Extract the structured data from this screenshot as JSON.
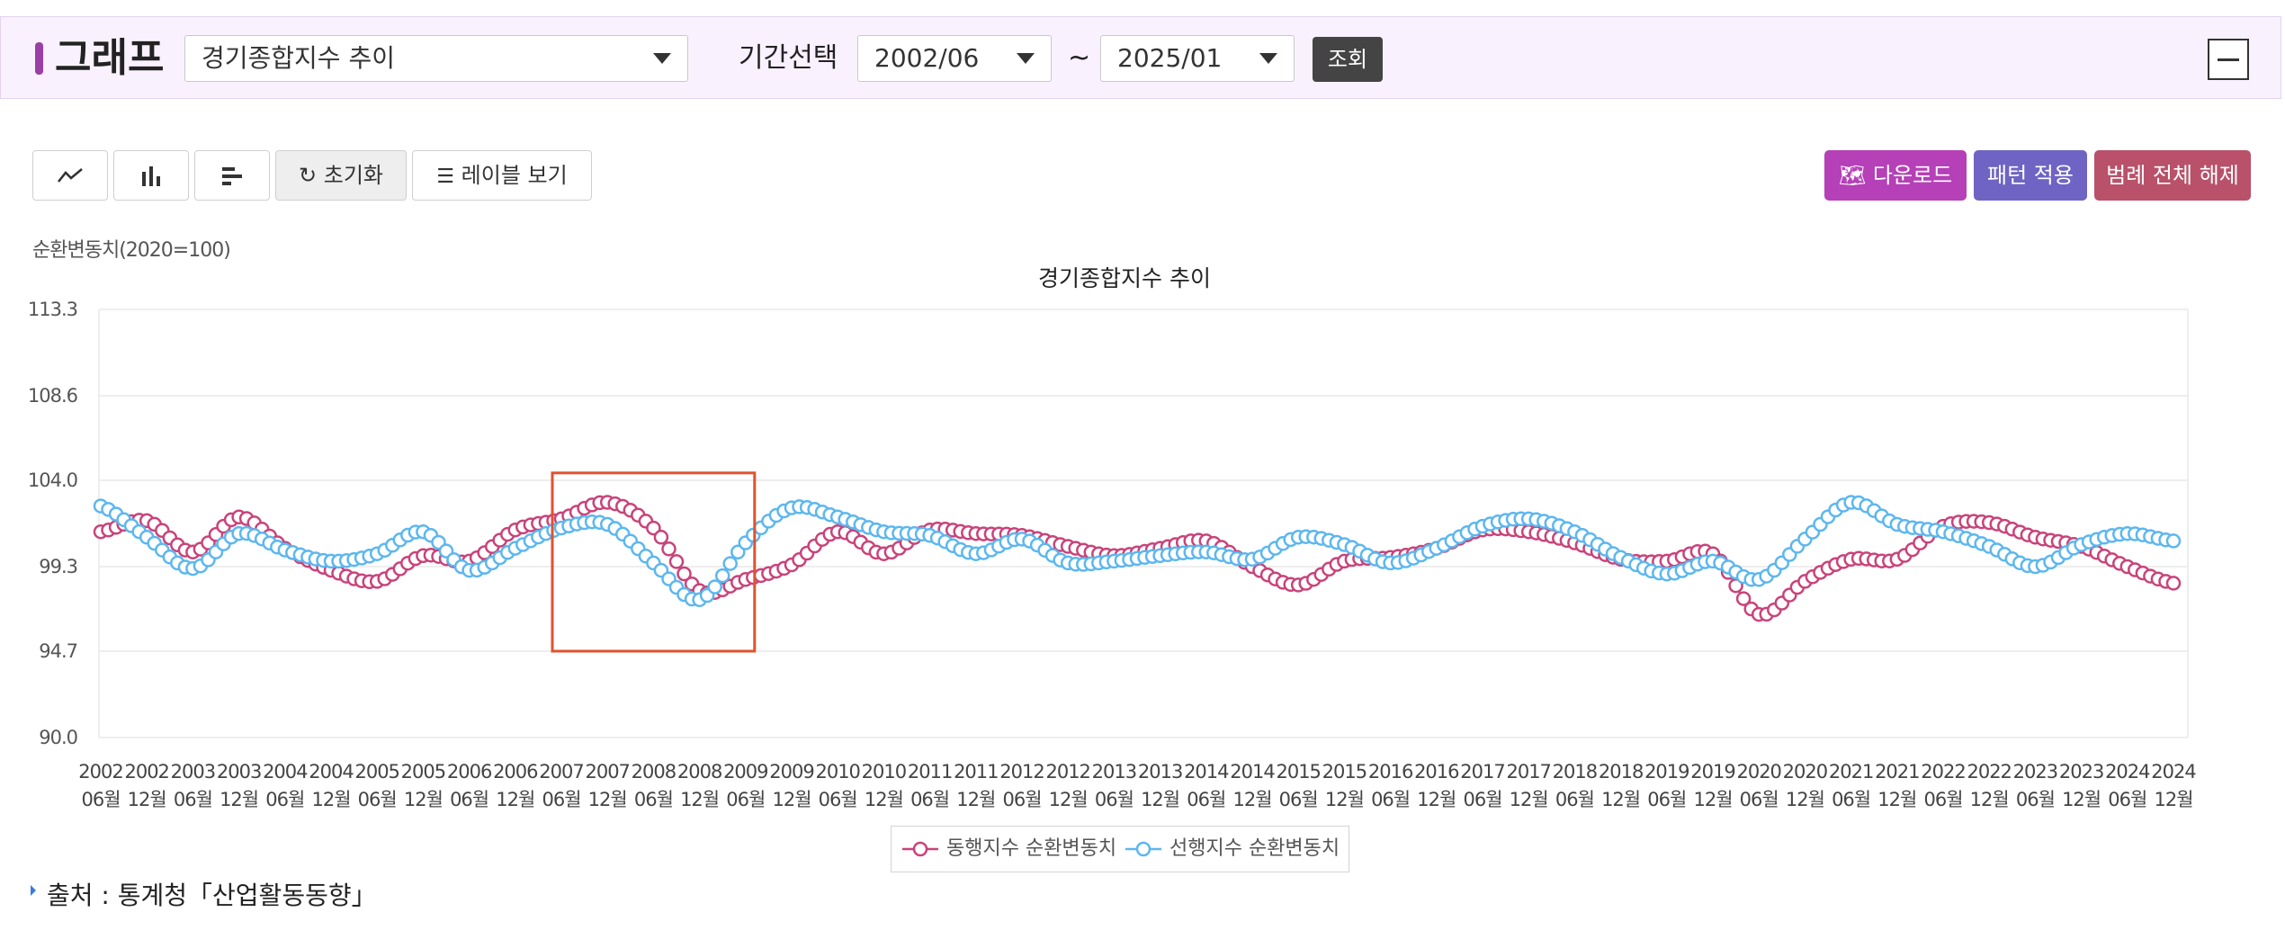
{
  "header": {
    "title": "그래프",
    "indicator_select": "경기종합지수 추이",
    "period_label": "기간선택",
    "start_select": "2002/06",
    "tilde": "~",
    "end_select": "2025/01",
    "query_button": "조회"
  },
  "toolbar": {
    "reset_label": "초기화",
    "label_view": "레이블 보기",
    "download": "다운로드",
    "pattern": "패턴 적용",
    "legend_clear": "범례 전체 해제"
  },
  "colors": {
    "coincident": "#c9437a",
    "leading": "#5cb7ef",
    "highlight": "#e0522e",
    "download_btn": "#b540b7",
    "pattern_btn": "#6f64c4",
    "legend_btn": "#b85169"
  },
  "chart_data": {
    "type": "line",
    "title": "경기종합지수 추이",
    "ylabel": "순환변동치(2020=100)",
    "ylim": [
      90.0,
      113.3
    ],
    "y_ticks": [
      "113.3",
      "108.6",
      "104.0",
      "99.3",
      "94.7",
      "90.0"
    ],
    "x_labels": [
      [
        "2002",
        "06월"
      ],
      [
        "2002",
        "12월"
      ],
      [
        "2003",
        "06월"
      ],
      [
        "2003",
        "12월"
      ],
      [
        "2004",
        "06월"
      ],
      [
        "2004",
        "12월"
      ],
      [
        "2005",
        "06월"
      ],
      [
        "2005",
        "12월"
      ],
      [
        "2006",
        "06월"
      ],
      [
        "2006",
        "12월"
      ],
      [
        "2007",
        "06월"
      ],
      [
        "2007",
        "12월"
      ],
      [
        "2008",
        "06월"
      ],
      [
        "2008",
        "12월"
      ],
      [
        "2009",
        "06월"
      ],
      [
        "2009",
        "12월"
      ],
      [
        "2010",
        "06월"
      ],
      [
        "2010",
        "12월"
      ],
      [
        "2011",
        "06월"
      ],
      [
        "2011",
        "12월"
      ],
      [
        "2012",
        "06월"
      ],
      [
        "2012",
        "12월"
      ],
      [
        "2013",
        "06월"
      ],
      [
        "2013",
        "12월"
      ],
      [
        "2014",
        "06월"
      ],
      [
        "2014",
        "12월"
      ],
      [
        "2015",
        "06월"
      ],
      [
        "2015",
        "12월"
      ],
      [
        "2016",
        "06월"
      ],
      [
        "2016",
        "12월"
      ],
      [
        "2017",
        "06월"
      ],
      [
        "2017",
        "12월"
      ],
      [
        "2018",
        "06월"
      ],
      [
        "2018",
        "12월"
      ],
      [
        "2019",
        "06월"
      ],
      [
        "2019",
        "12월"
      ],
      [
        "2020",
        "06월"
      ],
      [
        "2020",
        "12월"
      ],
      [
        "2021",
        "06월"
      ],
      [
        "2021",
        "12월"
      ],
      [
        "2022",
        "06월"
      ],
      [
        "2022",
        "12월"
      ],
      [
        "2023",
        "06월"
      ],
      [
        "2023",
        "12월"
      ],
      [
        "2024",
        "06월"
      ],
      [
        "2024",
        "12월"
      ]
    ],
    "series": [
      {
        "name": "동행지수 순환변동치",
        "values": [
          101.2,
          101.8,
          100.1,
          102.0,
          100.3,
          99.1,
          98.5,
          99.9,
          99.6,
          101.3,
          101.9,
          102.8,
          101.4,
          98.0,
          98.6,
          99.4,
          101.2,
          100.0,
          101.3,
          101.1,
          101.0,
          100.4,
          99.9,
          100.3,
          100.7,
          99.3,
          98.3,
          99.6,
          99.8,
          100.3,
          101.3,
          101.2,
          100.6,
          99.7,
          99.6,
          100.0,
          96.7,
          98.5,
          99.7,
          99.7,
          101.5,
          101.7,
          100.9,
          100.4,
          99.3,
          98.4
        ]
      },
      {
        "name": "선행지수 순환변동치",
        "values": [
          102.6,
          100.9,
          99.2,
          101.1,
          100.2,
          99.6,
          100.0,
          101.2,
          99.1,
          100.3,
          101.4,
          101.6,
          99.5,
          97.5,
          100.6,
          102.5,
          102.0,
          101.2,
          101.0,
          100.0,
          100.8,
          99.5,
          99.6,
          99.9,
          100.1,
          99.7,
          100.9,
          100.5,
          99.5,
          100.3,
          101.5,
          101.9,
          101.2,
          99.8,
          98.9,
          99.6,
          98.6,
          100.8,
          102.8,
          101.6,
          101.2,
          100.4,
          99.3,
          100.5,
          101.1,
          100.7
        ]
      }
    ],
    "legend": [
      "동행지수 순환변동치",
      "선행지수 순환변동치"
    ],
    "grid": true,
    "legend_position": "bottom-center"
  },
  "source": "출처 : 통계청「산업활동동향」"
}
